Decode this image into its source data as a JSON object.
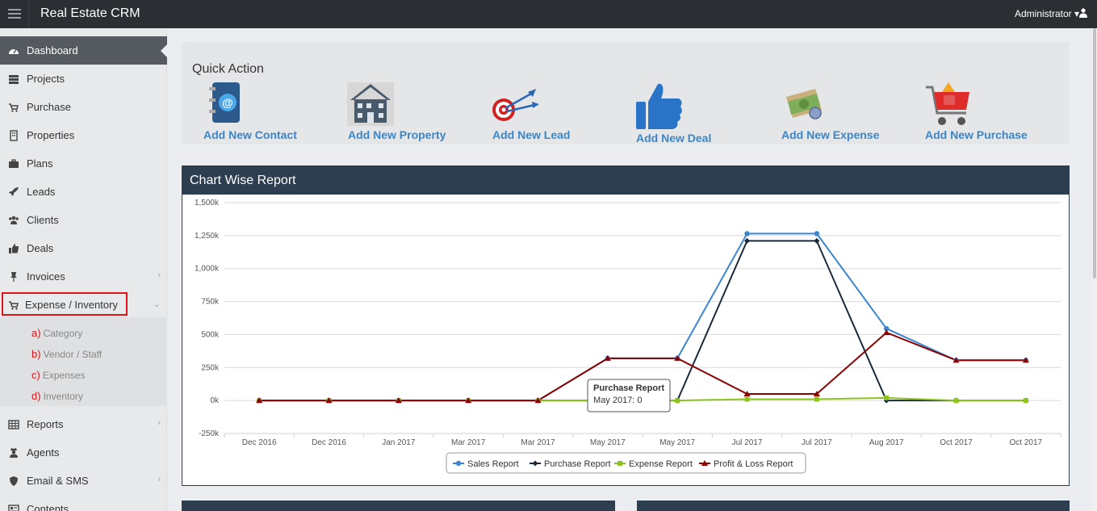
{
  "app": {
    "title": "Real Estate CRM",
    "user": "Administrator"
  },
  "sidebar": {
    "items": [
      {
        "label": "Dashboard",
        "icon": "dashboard-icon",
        "active": true
      },
      {
        "label": "Projects",
        "icon": "server-icon"
      },
      {
        "label": "Purchase",
        "icon": "cart-icon"
      },
      {
        "label": "Properties",
        "icon": "building-icon"
      },
      {
        "label": "Plans",
        "icon": "briefcase-icon"
      },
      {
        "label": "Leads",
        "icon": "rocket-icon"
      },
      {
        "label": "Clients",
        "icon": "users-icon"
      },
      {
        "label": "Deals",
        "icon": "thumbs-up-icon"
      },
      {
        "label": "Invoices",
        "icon": "pin-icon",
        "chevron": "›"
      },
      {
        "label": "Expense / Inventory",
        "icon": "cart-icon",
        "chevron": "⌄"
      },
      {
        "label": "Reports",
        "icon": "table-icon",
        "chevron": "›"
      },
      {
        "label": "Agents",
        "icon": "user-secret-icon"
      },
      {
        "label": "Email & SMS",
        "icon": "shield-icon",
        "chevron": "›"
      },
      {
        "label": "Contents",
        "icon": "contents-icon"
      }
    ],
    "submenu": [
      {
        "letter": "a)",
        "label": "Category"
      },
      {
        "letter": "b)",
        "label": "Vendor / Staff"
      },
      {
        "letter": "c)",
        "label": "Expenses"
      },
      {
        "letter": "d)",
        "label": "Inventory"
      }
    ]
  },
  "quick_action": {
    "title": "Quick Action",
    "actions": [
      {
        "label": "Add New Contact",
        "icon": "address-book-icon"
      },
      {
        "label": "Add New Property",
        "icon": "house-icon"
      },
      {
        "label": "Add New Lead",
        "icon": "target-icon"
      },
      {
        "label": "Add New Deal",
        "icon": "thumbs-up-icon"
      },
      {
        "label": "Add New Expense",
        "icon": "money-icon"
      },
      {
        "label": "Add New Purchase",
        "icon": "shopping-cart-icon"
      }
    ]
  },
  "chart_panel": {
    "title": "Chart Wise Report"
  },
  "chart_data": {
    "type": "line",
    "categories": [
      "Dec 2016",
      "Dec 2016",
      "Jan 2017",
      "Mar 2017",
      "Mar 2017",
      "May 2017",
      "May 2017",
      "Jul 2017",
      "Jul 2017",
      "Aug 2017",
      "Oct 2017",
      "Oct 2017"
    ],
    "ylim": [
      -250000,
      1500000
    ],
    "yticks": [
      -250000,
      0,
      250000,
      500000,
      750000,
      1000000,
      1250000,
      1500000
    ],
    "ytick_labels": [
      "-250k",
      "0k",
      "250k",
      "500k",
      "750k",
      "1,000k",
      "1,250k",
      "1,500k"
    ],
    "grid": true,
    "legend_position": "bottom-center",
    "series": [
      {
        "name": "Sales Report",
        "color": "#3a86d0",
        "marker": "circle",
        "values": [
          0,
          0,
          0,
          0,
          0,
          320000,
          320000,
          1265000,
          1265000,
          545000,
          305000,
          305000
        ]
      },
      {
        "name": "Purchase Report",
        "color": "#1b2a3a",
        "marker": "diamond",
        "values": [
          0,
          0,
          0,
          0,
          0,
          0,
          0,
          1210000,
          1210000,
          0,
          0,
          0
        ]
      },
      {
        "name": "Expense Report",
        "color": "#8dc31f",
        "marker": "square",
        "values": [
          0,
          0,
          0,
          0,
          0,
          0,
          0,
          10000,
          10000,
          20000,
          0,
          0
        ]
      },
      {
        "name": "Profit & Loss Report",
        "color": "#8b0000",
        "marker": "triangle",
        "values": [
          0,
          0,
          0,
          0,
          0,
          320000,
          320000,
          50000,
          50000,
          515000,
          305000,
          305000
        ]
      }
    ],
    "tooltip": {
      "title": "Purchase Report",
      "text": "May 2017: 0"
    }
  }
}
